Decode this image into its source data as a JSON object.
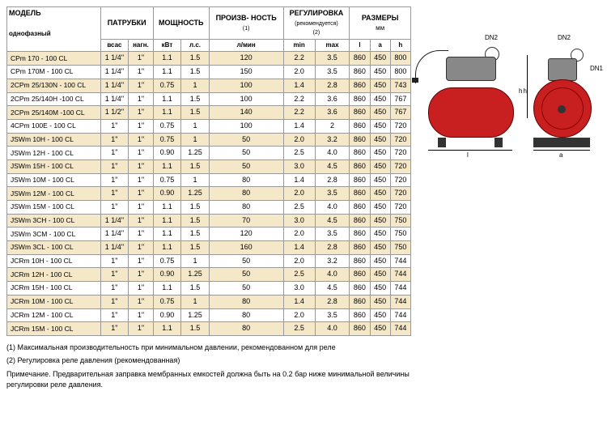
{
  "headers": {
    "model": "МОДЕЛЬ",
    "model_sub": "однофазный",
    "pipes": "ПАТРУБКИ",
    "pipes_sub1": "всас",
    "pipes_sub2": "нагн.",
    "power": "МОЩНОСТЬ",
    "power_sub1": "кВт",
    "power_sub2": "л.с.",
    "perf": "ПРОИЗВ-\nНОСТЬ",
    "perf_note": "(1)",
    "perf_sub": "л/мин",
    "reg": "РЕГУЛИРОВКА",
    "reg_note": "(рекомендуется)",
    "reg_note2": "(2)",
    "reg_sub1": "min",
    "reg_sub2": "max",
    "dims": "РАЗМЕРЫ",
    "dims_unit": "мм",
    "dims_sub1": "l",
    "dims_sub2": "a",
    "dims_sub3": "h"
  },
  "rows": [
    {
      "model": "CPm 170    - 100 CL",
      "suc": "1 1/4\"",
      "dis": "1\"",
      "kw": "1.1",
      "hp": "1.5",
      "lmin": "120",
      "min": "2.2",
      "max": "3.5",
      "l": "860",
      "a": "450",
      "h": "800"
    },
    {
      "model": "CPm 170M - 100 CL",
      "suc": "1 1/4\"",
      "dis": "1\"",
      "kw": "1.1",
      "hp": "1.5",
      "lmin": "150",
      "min": "2.0",
      "max": "3.5",
      "l": "860",
      "a": "450",
      "h": "800"
    },
    {
      "model": "2CPm 25/130N - 100 CL",
      "suc": "1 1/4\"",
      "dis": "1\"",
      "kw": "0.75",
      "hp": "1",
      "lmin": "100",
      "min": "1.4",
      "max": "2.8",
      "l": "860",
      "a": "450",
      "h": "743"
    },
    {
      "model": "2CPm 25/140H -100 CL",
      "suc": "1 1/4\"",
      "dis": "1\"",
      "kw": "1.1",
      "hp": "1.5",
      "lmin": "100",
      "min": "2.2",
      "max": "3.6",
      "l": "860",
      "a": "450",
      "h": "767"
    },
    {
      "model": "2CPm 25/140M -100 CL",
      "suc": "1 1/2\"",
      "dis": "1\"",
      "kw": "1.1",
      "hp": "1.5",
      "lmin": "140",
      "min": "2.2",
      "max": "3.6",
      "l": "860",
      "a": "450",
      "h": "767"
    },
    {
      "model": "4CPm 100E - 100 CL",
      "suc": "1\"",
      "dis": "1\"",
      "kw": "0.75",
      "hp": "1",
      "lmin": "100",
      "min": "1.4",
      "max": "2",
      "l": "860",
      "a": "450",
      "h": "720"
    },
    {
      "model": "JSWm 10H  - 100 CL",
      "suc": "1\"",
      "dis": "1\"",
      "kw": "0.75",
      "hp": "1",
      "lmin": "50",
      "min": "2.0",
      "max": "3.2",
      "l": "860",
      "a": "450",
      "h": "720"
    },
    {
      "model": "JSWm 12H  - 100 CL",
      "suc": "1\"",
      "dis": "1\"",
      "kw": "0.90",
      "hp": "1.25",
      "lmin": "50",
      "min": "2.5",
      "max": "4.0",
      "l": "860",
      "a": "450",
      "h": "720"
    },
    {
      "model": "JSWm 15H  - 100 CL",
      "suc": "1\"",
      "dis": "1\"",
      "kw": "1.1",
      "hp": "1.5",
      "lmin": "50",
      "min": "3.0",
      "max": "4.5",
      "l": "860",
      "a": "450",
      "h": "720"
    },
    {
      "model": "JSWm 10M - 100 CL",
      "suc": "1\"",
      "dis": "1\"",
      "kw": "0.75",
      "hp": "1",
      "lmin": "80",
      "min": "1.4",
      "max": "2.8",
      "l": "860",
      "a": "450",
      "h": "720"
    },
    {
      "model": "JSWm 12M - 100 CL",
      "suc": "1\"",
      "dis": "1\"",
      "kw": "0.90",
      "hp": "1.25",
      "lmin": "80",
      "min": "2.0",
      "max": "3.5",
      "l": "860",
      "a": "450",
      "h": "720"
    },
    {
      "model": "JSWm 15M - 100 CL",
      "suc": "1\"",
      "dis": "1\"",
      "kw": "1.1",
      "hp": "1.5",
      "lmin": "80",
      "min": "2.5",
      "max": "4.0",
      "l": "860",
      "a": "450",
      "h": "720"
    },
    {
      "model": "JSWm 3CH - 100 CL",
      "suc": "1 1/4\"",
      "dis": "1\"",
      "kw": "1.1",
      "hp": "1.5",
      "lmin": "70",
      "min": "3.0",
      "max": "4.5",
      "l": "860",
      "a": "450",
      "h": "750"
    },
    {
      "model": "JSWm 3CM - 100 CL",
      "suc": "1 1/4\"",
      "dis": "1\"",
      "kw": "1.1",
      "hp": "1.5",
      "lmin": "120",
      "min": "2.0",
      "max": "3.5",
      "l": "860",
      "a": "450",
      "h": "750"
    },
    {
      "model": "JSWm 3CL - 100 CL",
      "suc": "1 1/4\"",
      "dis": "1\"",
      "kw": "1.1",
      "hp": "1.5",
      "lmin": "160",
      "min": "1.4",
      "max": "2.8",
      "l": "860",
      "a": "450",
      "h": "750"
    },
    {
      "model": "JCRm 10H  - 100 CL",
      "suc": "1\"",
      "dis": "1\"",
      "kw": "0.75",
      "hp": "1",
      "lmin": "50",
      "min": "2.0",
      "max": "3.2",
      "l": "860",
      "a": "450",
      "h": "744"
    },
    {
      "model": "JCRm 12H  - 100 CL",
      "suc": "1\"",
      "dis": "1\"",
      "kw": "0.90",
      "hp": "1.25",
      "lmin": "50",
      "min": "2.5",
      "max": "4.0",
      "l": "860",
      "a": "450",
      "h": "744"
    },
    {
      "model": "JCRm 15H  - 100 CL",
      "suc": "1\"",
      "dis": "1\"",
      "kw": "1.1",
      "hp": "1.5",
      "lmin": "50",
      "min": "3.0",
      "max": "4.5",
      "l": "860",
      "a": "450",
      "h": "744"
    },
    {
      "model": "JCRm 10M  - 100 CL",
      "suc": "1\"",
      "dis": "1\"",
      "kw": "0.75",
      "hp": "1",
      "lmin": "80",
      "min": "1.4",
      "max": "2.8",
      "l": "860",
      "a": "450",
      "h": "744"
    },
    {
      "model": "JCRm 12M  - 100 CL",
      "suc": "1\"",
      "dis": "1\"",
      "kw": "0.90",
      "hp": "1.25",
      "lmin": "80",
      "min": "2.0",
      "max": "3.5",
      "l": "860",
      "a": "450",
      "h": "744"
    },
    {
      "model": "JCRm 15M  - 100 CL",
      "suc": "1\"",
      "dis": "1\"",
      "kw": "1.1",
      "hp": "1.5",
      "lmin": "80",
      "min": "2.5",
      "max": "4.0",
      "l": "860",
      "a": "450",
      "h": "744"
    }
  ],
  "footnotes": {
    "n1": "(1) Максимальная производительность при минимальном давлении, рекомендованном для реле",
    "n2": "(2) Регулировка реле давления (рекомендованная)",
    "note": "Примечание. Предварительная заправка мембранных емкостей должна быть на 0.2 бар ниже минимальной величины регулировки реле давления."
  },
  "diagram": {
    "dn1": "DN1",
    "dn2": "DN2",
    "l": "l",
    "a": "a",
    "h": "h"
  },
  "style": {
    "stripe_color": "#f5e8c8",
    "tank_color": "#c82020",
    "border_color": "#999999"
  }
}
